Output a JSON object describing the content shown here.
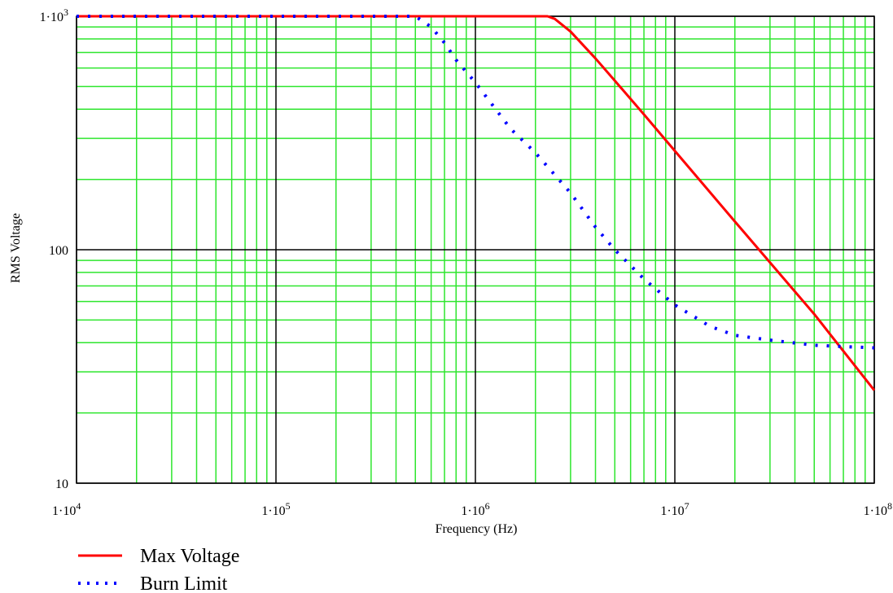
{
  "chart_data": {
    "type": "line",
    "xlabel": "Frequency (Hz)",
    "ylabel": "RMS Voltage",
    "x_scale": "log",
    "y_scale": "log",
    "xlim": [
      10000,
      100000000
    ],
    "ylim": [
      10,
      1000
    ],
    "grid": true,
    "legend_position": "bottom-left",
    "x_ticks": [
      {
        "value": 10000,
        "base": "1·10",
        "exp": "4"
      },
      {
        "value": 100000,
        "base": "1·10",
        "exp": "5"
      },
      {
        "value": 1000000,
        "base": "1·10",
        "exp": "6"
      },
      {
        "value": 10000000,
        "base": "1·10",
        "exp": "7"
      },
      {
        "value": 100000000,
        "base": "1·10",
        "exp": "8"
      }
    ],
    "y_ticks": [
      {
        "value": 10,
        "base": "10",
        "exp": ""
      },
      {
        "value": 100,
        "base": "100",
        "exp": ""
      },
      {
        "value": 1000,
        "base": "1·10",
        "exp": "3"
      }
    ],
    "series": [
      {
        "name": "Max Voltage",
        "style": "solid",
        "color": "#ff0000",
        "x": [
          10000,
          100000,
          1000000,
          2000000,
          2300000,
          2500000,
          3000000,
          4000000,
          5000000,
          7000000,
          10000000,
          20000000,
          50000000,
          100000000
        ],
        "y": [
          1000,
          1000,
          1000,
          1000,
          1000,
          975,
          860,
          660,
          530,
          380,
          265,
          132,
          53,
          25
        ]
      },
      {
        "name": "Burn Limit",
        "style": "dotted",
        "color": "#0000ff",
        "x": [
          10000,
          100000,
          500000,
          600000,
          700000,
          800000,
          1000000,
          1500000,
          2000000,
          3000000,
          4000000,
          5000000,
          7000000,
          10000000,
          15000000,
          20000000,
          30000000,
          50000000,
          70000000,
          100000000
        ],
        "y": [
          1000,
          1000,
          1000,
          900,
          770,
          650,
          520,
          330,
          260,
          175,
          125,
          100,
          75,
          58,
          47,
          43,
          41,
          39,
          38.5,
          38
        ]
      }
    ]
  }
}
